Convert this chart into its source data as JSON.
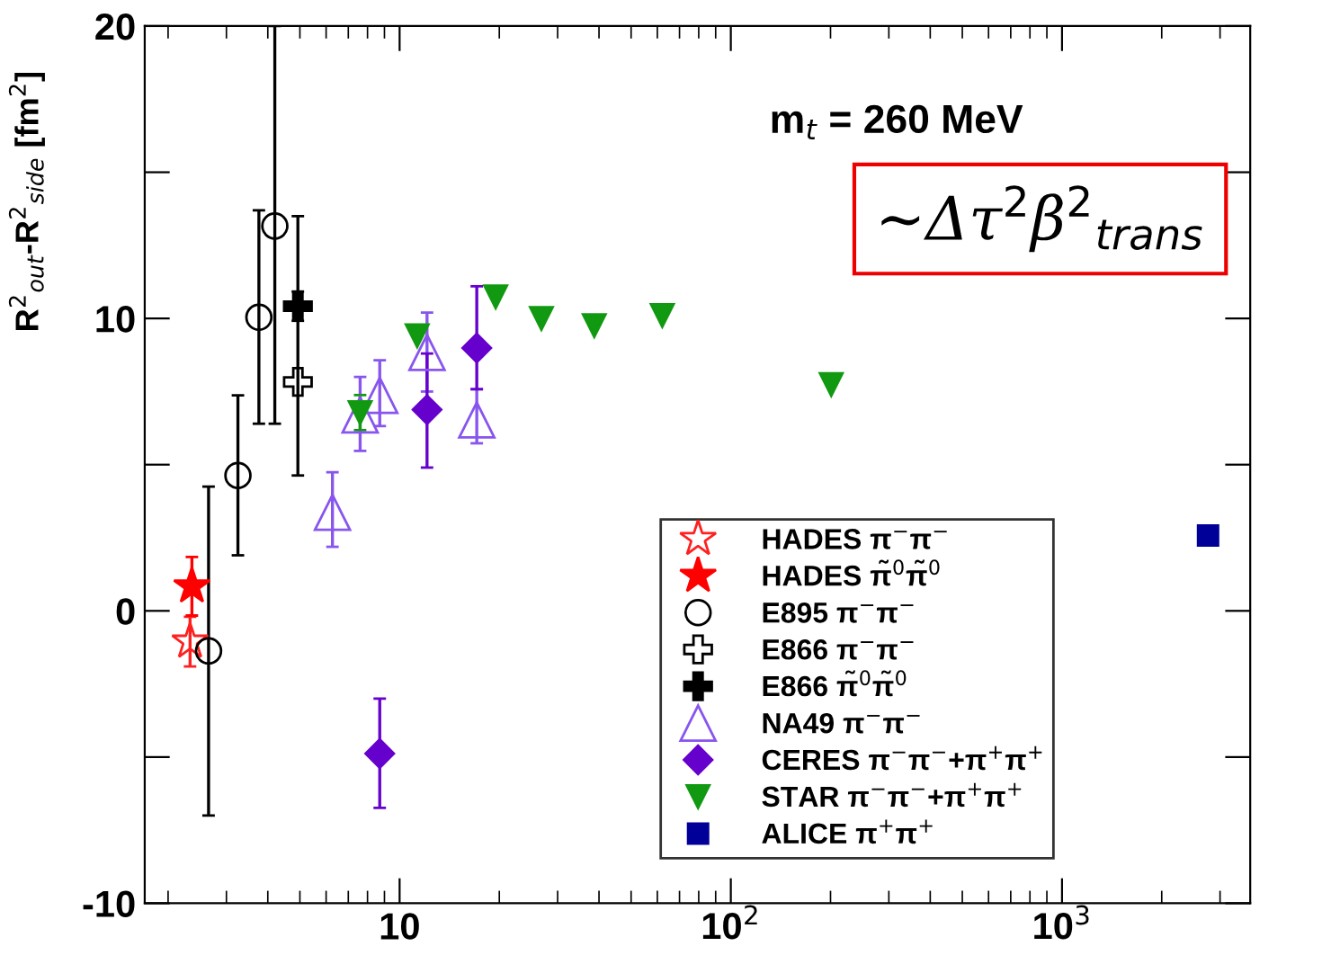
{
  "chart_data": {
    "type": "scatter",
    "ylabel": "R$^{2}$$_{out}$-R$^{2}$$_{side}$ [fm$^{2}$]",
    "xlim": [
      1.7,
      3700
    ],
    "ylim": [
      -10,
      20
    ],
    "log": "x",
    "xticks": [
      {
        "value": 10,
        "label": "10"
      },
      {
        "value": 100,
        "label": "10$^{2}$"
      },
      {
        "value": 1000,
        "label": "10$^{3}$"
      }
    ],
    "yticks": [
      -10,
      {
        "value": -5,
        "label": null
      },
      0,
      {
        "value": 5,
        "label": null
      },
      10,
      {
        "value": 15,
        "label": null
      },
      20
    ],
    "grid": false,
    "legend": "bottom right",
    "annotations": [
      "m$_{t}$ = 260 MeV",
      "∼Δτ$^{2}$β$^{2}$$_{trans}$"
    ],
    "series": [
      {
        "name": "HADES π$^{−}$π$^{−}$",
        "color": "#ff2020",
        "marker": "star-open",
        "x": [
          2.33
        ],
        "values": [
          -1.05
        ],
        "errors": [
          0.85
        ]
      },
      {
        "name": "HADES π̃$^{0}$π̃$^{0}$",
        "color": "#ff0000",
        "marker": "star",
        "x": [
          2.36
        ],
        "values": [
          0.84
        ],
        "errors": [
          1.0
        ]
      },
      {
        "name": "E895 π$^{−}$π$^{−}$",
        "color": "#000000",
        "marker": "circle-open",
        "x": [
          2.65,
          3.25,
          3.76,
          4.2
        ],
        "values": [
          -1.37,
          4.63,
          10.04,
          13.16
        ],
        "errors": [
          [
            -7.0,
            4.25
          ],
          [
            1.9,
            7.37
          ],
          [
            6.4,
            13.7
          ],
          [
            6.4,
            20
          ]
        ]
      },
      {
        "name": "E866 π$^{−}$π$^{−}$",
        "color": "#000000",
        "marker": "cross-open",
        "x": [
          4.93
        ],
        "values": [
          7.83
        ],
        "errors": [
          [
            4.63,
            13.5
          ]
        ]
      },
      {
        "name": "E866 π̃$^{0}$π̃$^{0}$",
        "color": "#000000",
        "marker": "cross",
        "x": [
          4.93
        ],
        "values": [
          10.42
        ],
        "errors": [
          0.5
        ]
      },
      {
        "name": "NA49 π$^{−}$π$^{−}$",
        "color": "#8855ee",
        "marker": "triangle-open",
        "x": [
          6.27,
          7.6,
          8.71,
          12.1,
          17.1
        ],
        "values": [
          3.37,
          6.7,
          7.37,
          8.84,
          6.53
        ],
        "errors": [
          [
            2.19,
            4.74
          ],
          [
            5.47,
            8.0
          ],
          [
            6.32,
            8.57
          ],
          [
            7.5,
            10.2
          ],
          [
            5.73,
            7.58
          ]
        ]
      },
      {
        "name": "CERES π$^{−}$π$^{−}$+π$^{+}$π$^{+}$",
        "color": "#6600cc",
        "marker": "diamond",
        "x": [
          8.71,
          12.1,
          17.1
        ],
        "values": [
          -4.88,
          6.88,
          8.99
        ],
        "errors": [
          [
            -6.74,
            -3.0
          ],
          [
            4.9,
            8.8
          ],
          [
            7.58,
            11.1
          ]
        ]
      },
      {
        "name": "STAR π$^{−}$π$^{−}$+π$^{+}$π$^{+}$",
        "color": "#119911",
        "marker": "triangle-down",
        "x": [
          7.6,
          11.3,
          19.5,
          26.8,
          38.7,
          62.1,
          201
        ],
        "values": [
          6.78,
          9.41,
          10.74,
          10.0,
          9.75,
          10.1,
          7.74
        ],
        "errors": [
          0.6,
          null,
          null,
          null,
          null,
          null,
          null
        ]
      },
      {
        "name": "ALICE π$^{+}$π$^{+}$",
        "color": "#000099",
        "marker": "square",
        "x": [
          2760
        ],
        "values": [
          2.58
        ]
      }
    ]
  }
}
